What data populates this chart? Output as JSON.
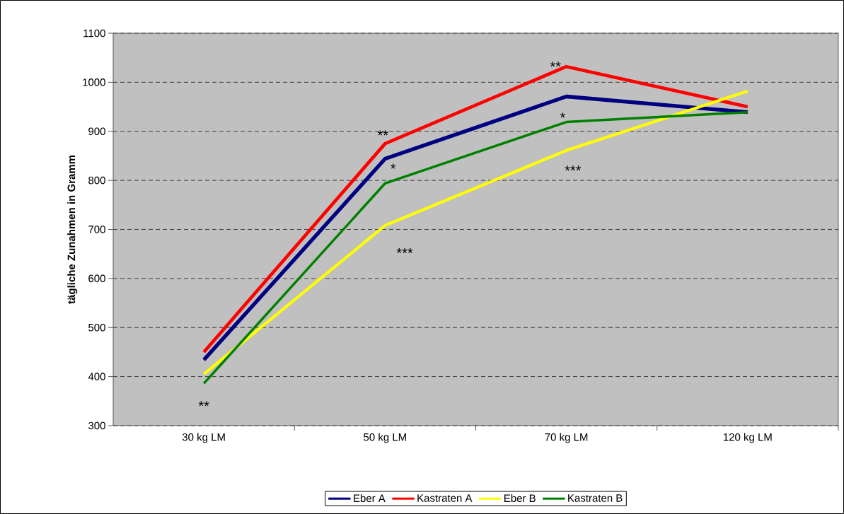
{
  "chart_data": {
    "type": "line",
    "ylabel": "tägliche Zunahmen in Gramm",
    "categories": [
      "30 kg LM",
      "50 kg LM",
      "70 kg LM",
      "120 kg LM"
    ],
    "series": [
      {
        "name": "Eber A",
        "color": "#000080",
        "values": [
          434,
          844,
          971,
          939
        ]
      },
      {
        "name": "Kastraten A",
        "color": "#ff0000",
        "values": [
          450,
          875,
          1032,
          950
        ]
      },
      {
        "name": "Eber B",
        "color": "#ffff00",
        "values": [
          405,
          708,
          861,
          982
        ]
      },
      {
        "name": "Kastraten B",
        "color": "#008000",
        "values": [
          386,
          794,
          919,
          939
        ]
      }
    ],
    "ylim": [
      300,
      1100
    ],
    "yticks": [
      300,
      400,
      500,
      600,
      700,
      800,
      900,
      1000,
      1100
    ],
    "grid": "y",
    "legend": "bottom",
    "marker": "none",
    "line_style": "solid",
    "annotations": [
      "**",
      "**",
      "*",
      "***",
      "**",
      "*",
      "***"
    ]
  }
}
